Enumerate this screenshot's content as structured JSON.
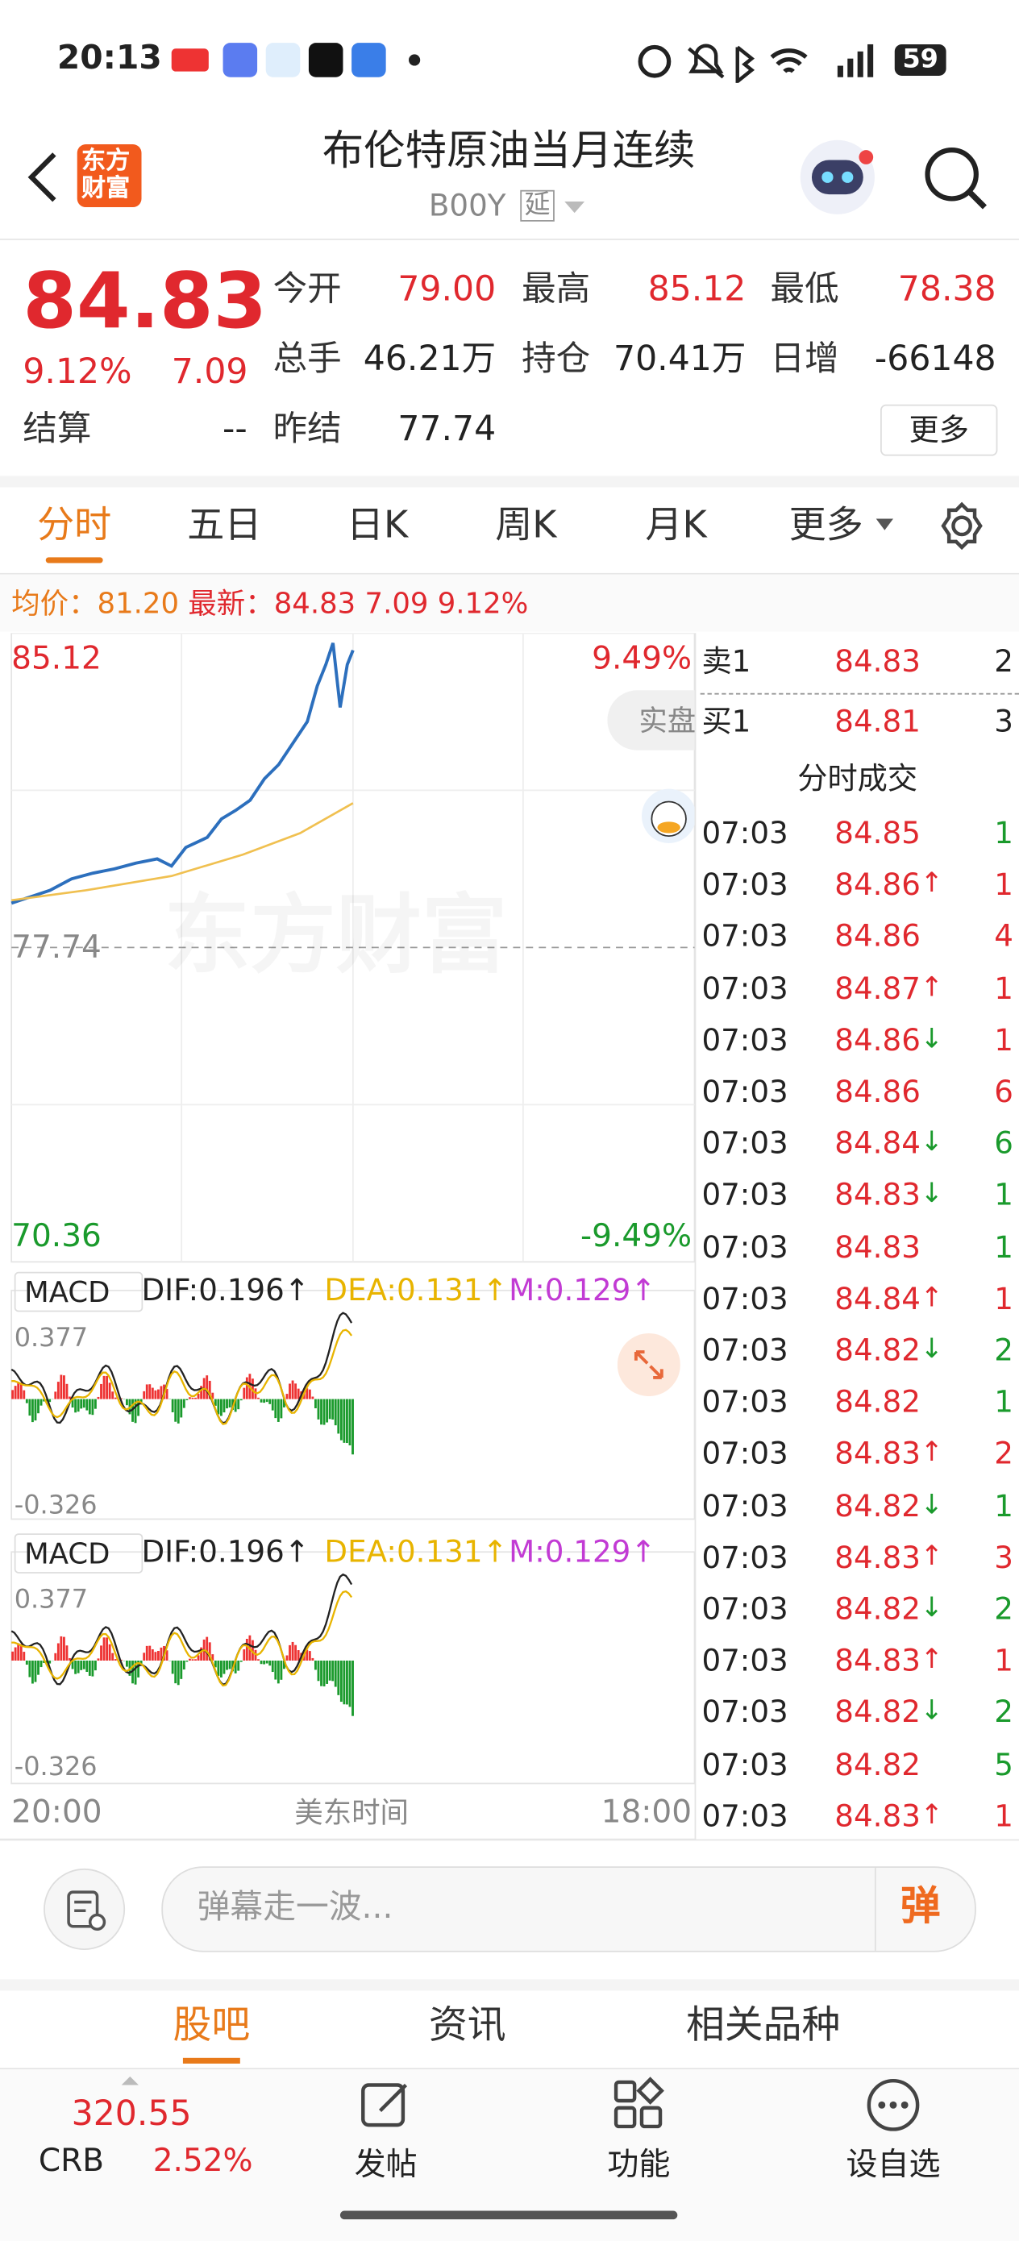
{
  "status": {
    "time": "20:13",
    "battery": "59"
  },
  "header": {
    "logo": [
      "东方",
      "财富"
    ],
    "title": "布伦特原油当月连续",
    "code": "B00Y",
    "tag": "延"
  },
  "quote": {
    "price": "84.83",
    "change_pct": "9.12%",
    "change": "7.09",
    "settle_label": "结算",
    "settle": "--",
    "stats": [
      {
        "label": "今开",
        "value": "79.00",
        "color": "#e0282e"
      },
      {
        "label": "最高",
        "value": "85.12",
        "color": "#e0282e"
      },
      {
        "label": "最低",
        "value": "78.38",
        "color": "#e0282e"
      },
      {
        "label": "总手",
        "value": "46.21万",
        "color": "#222"
      },
      {
        "label": "持仓",
        "value": "70.41万",
        "color": "#222"
      },
      {
        "label": "日增",
        "value": "-66148",
        "color": "#222"
      },
      {
        "label": "昨结",
        "value": "77.74",
        "color": "#222"
      }
    ],
    "more": "更多"
  },
  "tabs": [
    "分时",
    "五日",
    "日K",
    "周K",
    "月K",
    "更多"
  ],
  "summary": {
    "avg_label": "均价：",
    "avg": "81.20",
    "latest_label": "最新：",
    "latest": "84.83",
    "change": "7.09",
    "pct": "9.12%"
  },
  "chart": {
    "ymax": "85.12",
    "ymin": "70.36",
    "pmax": "9.49%",
    "pmin": "-9.49%",
    "ref": "77.74",
    "watermark": "东方财富",
    "real": "实盘"
  },
  "macd": [
    {
      "label": "MACD",
      "dif": "DIF:0.196↑",
      "dea": "DEA:0.131↑",
      "m": "M:0.129↑",
      "top": "0.377",
      "bottom": "-0.326"
    },
    {
      "label": "MACD",
      "dif": "DIF:0.196↑",
      "dea": "DEA:0.131↑",
      "m": "M:0.129↑",
      "top": "0.377",
      "bottom": "-0.326"
    }
  ],
  "xaxis": {
    "start": "20:00",
    "mid": "美东时间",
    "end": "18:00"
  },
  "orderbook": {
    "sell": {
      "label": "卖1",
      "price": "84.83",
      "volume": "2"
    },
    "buy": {
      "label": "买1",
      "price": "84.81",
      "volume": "3"
    },
    "trades_title": "分时成交",
    "trades": [
      {
        "time": "07:03",
        "price": "84.85",
        "volume": "1",
        "volume_color": "#1a9a2c"
      },
      {
        "time": "07:03",
        "price": "84.86",
        "arrow": "↑",
        "arrow_color": "#e0282e",
        "volume": "1",
        "volume_color": "#e0282e"
      },
      {
        "time": "07:03",
        "price": "84.86",
        "volume": "4",
        "volume_color": "#e0282e"
      },
      {
        "time": "07:03",
        "price": "84.87",
        "arrow": "↑",
        "arrow_color": "#e0282e",
        "volume": "1",
        "volume_color": "#e0282e"
      },
      {
        "time": "07:03",
        "price": "84.86",
        "arrow": "↓",
        "arrow_color": "#1a9a2c",
        "volume": "1",
        "volume_color": "#e0282e"
      },
      {
        "time": "07:03",
        "price": "84.86",
        "volume": "6",
        "volume_color": "#e0282e"
      },
      {
        "time": "07:03",
        "price": "84.84",
        "arrow": "↓",
        "arrow_color": "#1a9a2c",
        "volume": "6",
        "volume_color": "#1a9a2c"
      },
      {
        "time": "07:03",
        "price": "84.83",
        "arrow": "↓",
        "arrow_color": "#1a9a2c",
        "volume": "1",
        "volume_color": "#1a9a2c"
      },
      {
        "time": "07:03",
        "price": "84.83",
        "volume": "1",
        "volume_color": "#1a9a2c"
      },
      {
        "time": "07:03",
        "price": "84.84",
        "arrow": "↑",
        "arrow_color": "#e0282e",
        "volume": "1",
        "volume_color": "#e0282e"
      },
      {
        "time": "07:03",
        "price": "84.82",
        "arrow": "↓",
        "arrow_color": "#1a9a2c",
        "volume": "2",
        "volume_color": "#1a9a2c"
      },
      {
        "time": "07:03",
        "price": "84.82",
        "volume": "1",
        "volume_color": "#1a9a2c"
      },
      {
        "time": "07:03",
        "price": "84.83",
        "arrow": "↑",
        "arrow_color": "#e0282e",
        "volume": "2",
        "volume_color": "#e0282e"
      },
      {
        "time": "07:03",
        "price": "84.82",
        "arrow": "↓",
        "arrow_color": "#1a9a2c",
        "volume": "1",
        "volume_color": "#1a9a2c"
      },
      {
        "time": "07:03",
        "price": "84.83",
        "arrow": "↑",
        "arrow_color": "#e0282e",
        "volume": "3",
        "volume_color": "#e0282e"
      },
      {
        "time": "07:03",
        "price": "84.82",
        "arrow": "↓",
        "arrow_color": "#1a9a2c",
        "volume": "2",
        "volume_color": "#1a9a2c"
      },
      {
        "time": "07:03",
        "price": "84.83",
        "arrow": "↑",
        "arrow_color": "#e0282e",
        "volume": "1",
        "volume_color": "#e0282e"
      },
      {
        "time": "07:03",
        "price": "84.82",
        "arrow": "↓",
        "arrow_color": "#1a9a2c",
        "volume": "2",
        "volume_color": "#1a9a2c"
      },
      {
        "time": "07:03",
        "price": "84.82",
        "volume": "5",
        "volume_color": "#1a9a2c"
      },
      {
        "time": "07:03",
        "price": "84.83",
        "arrow": "↑",
        "arrow_color": "#e0282e",
        "volume": "1",
        "volume_color": "#e0282e"
      }
    ]
  },
  "comment": {
    "placeholder": "弹幕走一波...",
    "button": "弹"
  },
  "bottom_tabs": [
    "股吧",
    "资讯",
    "相关品种"
  ],
  "nav": {
    "index_value": "320.55",
    "index_name": "CRB",
    "index_pct": "2.52%",
    "items": [
      "发帖",
      "功能",
      "设自选"
    ]
  }
}
